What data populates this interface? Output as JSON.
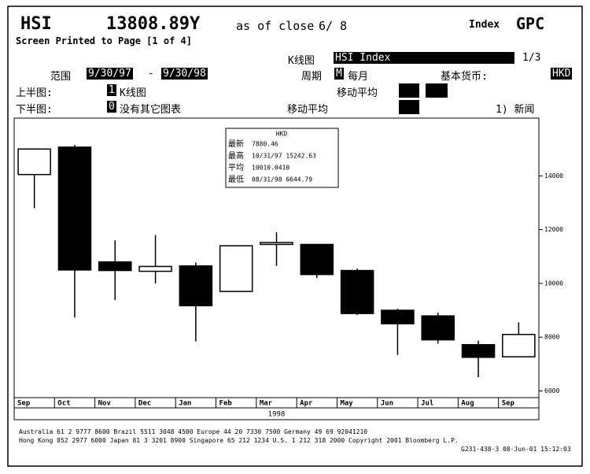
{
  "header": {
    "ticker": "HSI",
    "price": "13808.89Y",
    "asof": "as of close",
    "date": "6/ 8",
    "kind": "Index",
    "func": "GPC",
    "printed": "Screen Printed to Page [1 of 4]",
    "chart_label": "K线图",
    "security": "HSI Index",
    "page": "1/3",
    "range_label": "范围",
    "start": "9/30/97",
    "dash": "-",
    "end": "9/30/98",
    "period_label": "周期",
    "period_code": "M",
    "period": "每月",
    "currency_label": "基本货币:",
    "currency": "HKD",
    "upper_label": "上半图:",
    "upper_code": "1",
    "upper": "K线图",
    "upper_ma": "移动平均",
    "lower_label": "下半图:",
    "lower_code": "0",
    "lower": "没有其它图表",
    "lower_ma": "移动平均",
    "news": "1) 新闻"
  },
  "chart_data": {
    "type": "candlestick",
    "categories": [
      "Sep",
      "Oct",
      "Nov",
      "Dec",
      "Jan",
      "Feb",
      "Mar",
      "Apr",
      "May",
      "Jun",
      "Jul",
      "Aug",
      "Sep"
    ],
    "year_label": "1998",
    "open": [
      14050,
      15070,
      10800,
      10450,
      10650,
      9700,
      11450,
      11450,
      10480,
      9000,
      8790,
      7720,
      7270
    ],
    "high": [
      15000,
      15150,
      11600,
      11800,
      10780,
      11400,
      11900,
      11450,
      10550,
      9060,
      8910,
      7870,
      8550
    ],
    "low": [
      12800,
      8730,
      9380,
      10000,
      7840,
      9700,
      10650,
      10200,
      8820,
      7340,
      7760,
      6510,
      7270
    ],
    "close": [
      15000,
      10500,
      10480,
      10630,
      9170,
      11400,
      11520,
      10330,
      8880,
      8500,
      7900,
      7250,
      8100
    ],
    "up_color": "#ffffff",
    "down_color": "#000000",
    "ylim": [
      5750,
      16150
    ],
    "yticks": [
      6000,
      8000,
      10000,
      12000,
      14000
    ],
    "info_title": "HKD",
    "info": [
      {
        "label": "最新",
        "text": "7880.46"
      },
      {
        "label": "最高",
        "text": "10/31/97 15242.63"
      },
      {
        "label": "平均",
        "text": "10010.0410"
      },
      {
        "label": "最低",
        "text": "08/31/98 6644.79"
      }
    ]
  },
  "footer": {
    "line1": "Australia 61 2 9777 8600   Brazil 5511 3048 4500   Europe 44 20 7330 7500   Germany 49 69 92041210",
    "line2": "Hong Kong 852 2977 6000  Japan 81 3 3201 8900  Singapore 65 212 1234  U.S. 1 212 318 2000  Copyright 2001 Bloomberg L.P.",
    "line3": "G231-438-3 08-Jun-01 15:12:03"
  }
}
